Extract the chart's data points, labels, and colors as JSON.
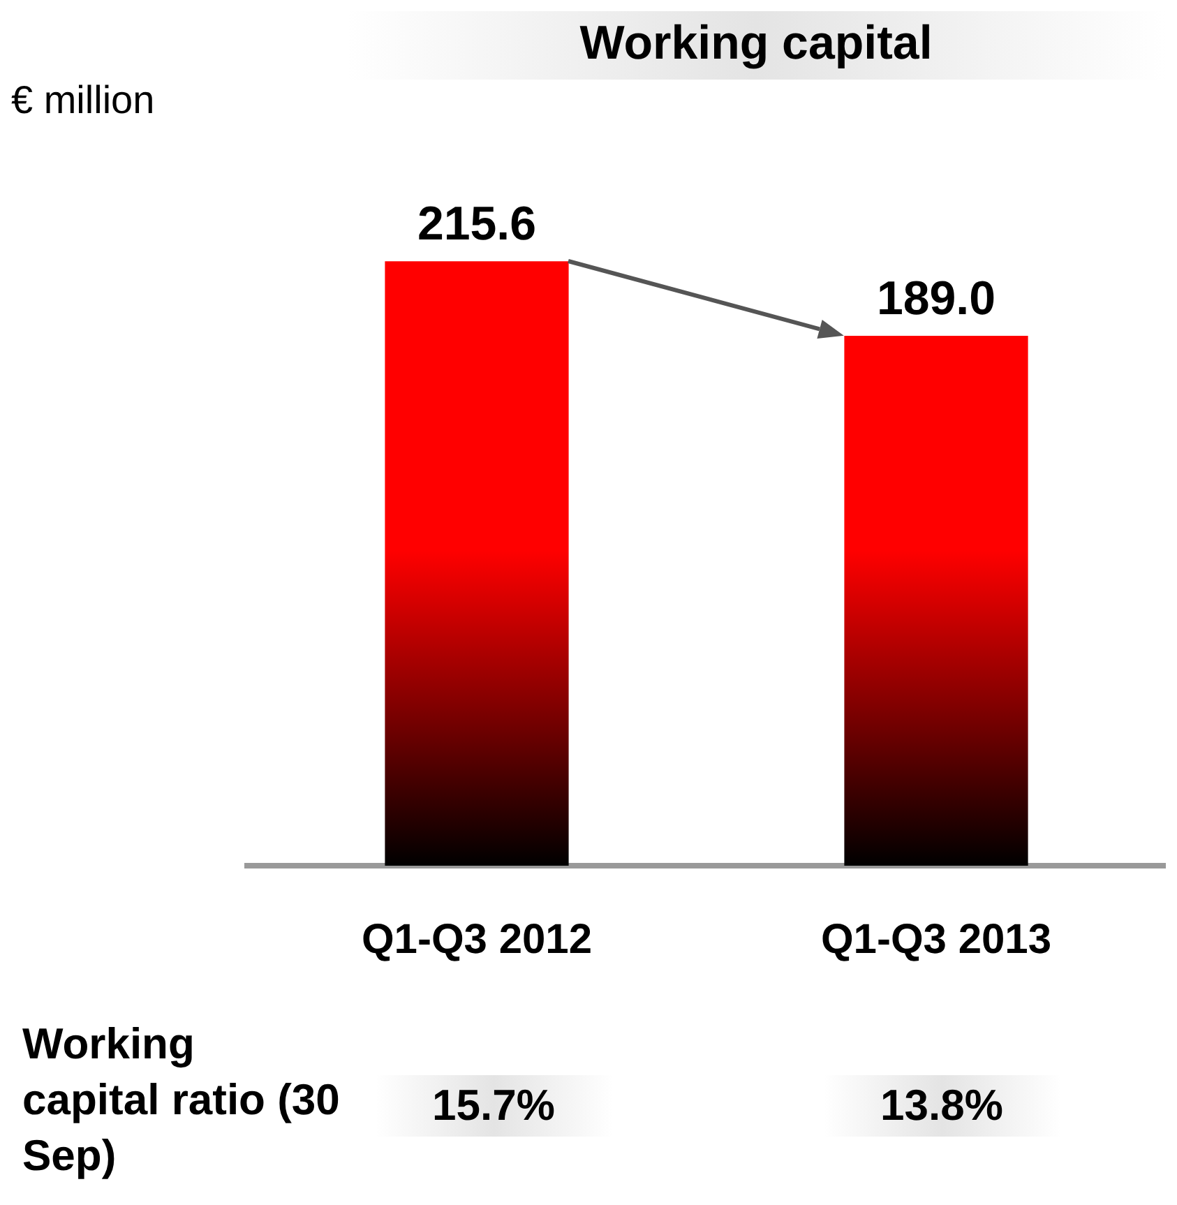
{
  "chart_data": {
    "type": "bar",
    "title": "Working capital",
    "ylabel": "€ million",
    "categories": [
      "Q1-Q3 2012",
      "Q1-Q3 2013"
    ],
    "values": [
      215.6,
      189.0
    ],
    "value_labels": [
      "215.6",
      "189.0"
    ],
    "color": "#ff0000",
    "grid": false,
    "legend": false,
    "annotations": [
      "Working capital ratio (30 Sep)",
      "15.7%",
      "13.8%"
    ]
  }
}
